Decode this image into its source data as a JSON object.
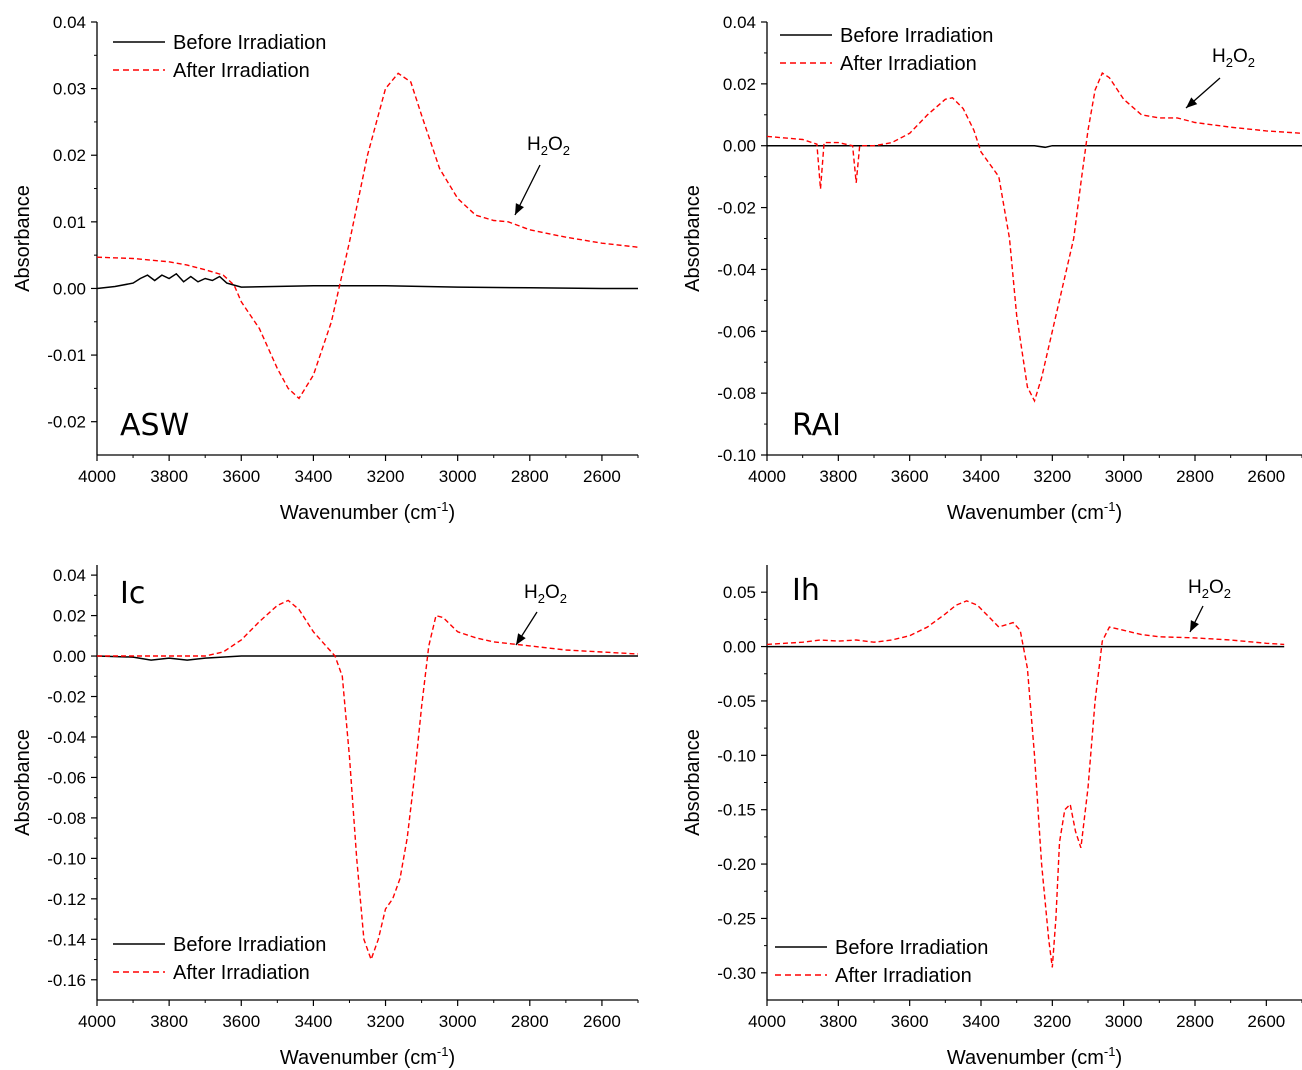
{
  "chart_data": [
    {
      "type": "line",
      "panel_label": "ASW",
      "xlabel": "Wavenumber (cm",
      "xlabel_sup": "-1",
      "xlabel_end": ")",
      "ylabel": "Absorbance",
      "xlim": [
        4000,
        2500
      ],
      "ylim": [
        -0.025,
        0.04
      ],
      "x_ticks": [
        4000,
        3800,
        3600,
        3400,
        3200,
        3000,
        2800,
        2600
      ],
      "x_tick_labels": [
        "4000",
        "3800",
        "3600",
        "3400",
        "3200",
        "3000",
        "2800",
        "2600"
      ],
      "y_ticks": [
        -0.02,
        -0.01,
        0.0,
        0.01,
        0.02,
        0.03,
        0.04
      ],
      "y_tick_labels": [
        "-0.02",
        "-0.01",
        "0.00",
        "0.01",
        "0.02",
        "0.03",
        "0.04"
      ],
      "legend_position": "top-left",
      "grid": false,
      "series": [
        {
          "name": "Before Irradiation",
          "color": "#000000",
          "style": "solid",
          "x": [
            4000,
            3950,
            3900,
            3880,
            3860,
            3840,
            3820,
            3800,
            3780,
            3760,
            3740,
            3720,
            3700,
            3680,
            3660,
            3640,
            3620,
            3600,
            3400,
            3200,
            3000,
            2800,
            2600,
            2500
          ],
          "y": [
            0.0,
            0.0003,
            0.0008,
            0.0015,
            0.002,
            0.0012,
            0.002,
            0.0015,
            0.0022,
            0.001,
            0.0018,
            0.001,
            0.0015,
            0.0012,
            0.0018,
            0.0008,
            0.0005,
            0.0002,
            0.0004,
            0.0004,
            0.0002,
            0.0001,
            0.0,
            0.0
          ]
        },
        {
          "name": "After Irradiation",
          "color": "#ff0000",
          "style": "dashed",
          "x": [
            4000,
            3900,
            3800,
            3750,
            3700,
            3650,
            3620,
            3600,
            3550,
            3500,
            3470,
            3440,
            3400,
            3350,
            3300,
            3250,
            3200,
            3165,
            3130,
            3100,
            3050,
            3000,
            2950,
            2900,
            2860,
            2800,
            2700,
            2600,
            2500
          ],
          "y": [
            0.0047,
            0.0045,
            0.004,
            0.0035,
            0.0028,
            0.002,
            0.0005,
            -0.002,
            -0.006,
            -0.012,
            -0.015,
            -0.0165,
            -0.013,
            -0.005,
            0.007,
            0.02,
            0.03,
            0.0323,
            0.031,
            0.026,
            0.018,
            0.0135,
            0.011,
            0.0102,
            0.01,
            0.0088,
            0.0077,
            0.0068,
            0.0062
          ]
        }
      ],
      "annotation": {
        "label": "H2O2",
        "x": 2860,
        "y": 0.01
      }
    },
    {
      "type": "line",
      "panel_label": "RAI",
      "xlabel": "Wavenumber (cm",
      "xlabel_sup": "-1",
      "xlabel_end": ")",
      "ylabel": "Absorbance",
      "xlim": [
        4000,
        2500
      ],
      "ylim": [
        -0.1,
        0.04
      ],
      "x_ticks": [
        4000,
        3800,
        3600,
        3400,
        3200,
        3000,
        2800,
        2600
      ],
      "x_tick_labels": [
        "4000",
        "3800",
        "3600",
        "3400",
        "3200",
        "3000",
        "2800",
        "2600"
      ],
      "y_ticks": [
        -0.1,
        -0.08,
        -0.06,
        -0.04,
        -0.02,
        0.0,
        0.02,
        0.04
      ],
      "y_tick_labels": [
        "-0.10",
        "-0.08",
        "-0.06",
        "-0.04",
        "-0.02",
        "0.00",
        "0.02",
        "0.04"
      ],
      "legend_position": "top-left",
      "grid": false,
      "series": [
        {
          "name": "Before Irradiation",
          "color": "#000000",
          "style": "solid",
          "x": [
            4000,
            3400,
            3250,
            3220,
            3200,
            3000,
            2500
          ],
          "y": [
            0.0,
            0.0,
            0.0,
            -0.0005,
            0.0,
            0.0,
            0.0
          ]
        },
        {
          "name": "After Irradiation",
          "color": "#ff0000",
          "style": "dashed",
          "x": [
            4000,
            3900,
            3860,
            3850,
            3840,
            3800,
            3760,
            3750,
            3740,
            3700,
            3650,
            3600,
            3550,
            3500,
            3480,
            3450,
            3420,
            3400,
            3350,
            3320,
            3300,
            3270,
            3250,
            3230,
            3200,
            3170,
            3140,
            3120,
            3100,
            3080,
            3060,
            3040,
            3000,
            2950,
            2900,
            2850,
            2800,
            2700,
            2600,
            2500
          ],
          "y": [
            0.003,
            0.002,
            0.0005,
            -0.014,
            0.001,
            0.001,
            0.0,
            -0.012,
            0.0,
            0.0,
            0.001,
            0.004,
            0.01,
            0.015,
            0.0155,
            0.012,
            0.005,
            -0.002,
            -0.01,
            -0.03,
            -0.055,
            -0.078,
            -0.0825,
            -0.075,
            -0.06,
            -0.045,
            -0.03,
            -0.012,
            0.005,
            0.018,
            0.0235,
            0.022,
            0.015,
            0.01,
            0.009,
            0.009,
            0.0075,
            0.006,
            0.0048,
            0.004
          ]
        }
      ],
      "annotation": {
        "label": "H2O2",
        "x": 2850,
        "y": 0.009
      }
    },
    {
      "type": "line",
      "panel_label": "Ic",
      "xlabel": "Wavenumber (cm",
      "xlabel_sup": "-1",
      "xlabel_end": ")",
      "ylabel": "Absorbance",
      "xlim": [
        4000,
        2500
      ],
      "ylim": [
        -0.17,
        0.045
      ],
      "x_ticks": [
        4000,
        3800,
        3600,
        3400,
        3200,
        3000,
        2800,
        2600
      ],
      "x_tick_labels": [
        "4000",
        "3800",
        "3600",
        "3400",
        "3200",
        "3000",
        "2800",
        "2600"
      ],
      "y_ticks": [
        -0.16,
        -0.14,
        -0.12,
        -0.1,
        -0.08,
        -0.06,
        -0.04,
        -0.02,
        0.0,
        0.02,
        0.04
      ],
      "y_tick_labels": [
        "-0.16",
        "-0.14",
        "-0.12",
        "-0.10",
        "-0.08",
        "-0.06",
        "-0.04",
        "-0.02",
        "0.00",
        "0.02",
        "0.04"
      ],
      "legend_position": "bottom-left",
      "grid": false,
      "series": [
        {
          "name": "Before Irradiation",
          "color": "#000000",
          "style": "solid",
          "x": [
            4000,
            3900,
            3850,
            3800,
            3750,
            3700,
            3600,
            3200,
            2500
          ],
          "y": [
            0.0,
            -0.0005,
            -0.002,
            -0.001,
            -0.002,
            -0.001,
            0.0,
            0.0,
            0.0
          ]
        },
        {
          "name": "After Irradiation",
          "color": "#ff0000",
          "style": "dashed",
          "x": [
            4000,
            3800,
            3700,
            3650,
            3600,
            3550,
            3500,
            3470,
            3440,
            3400,
            3360,
            3340,
            3320,
            3300,
            3280,
            3260,
            3240,
            3220,
            3200,
            3180,
            3160,
            3140,
            3120,
            3100,
            3080,
            3060,
            3040,
            3000,
            2950,
            2900,
            2850,
            2800,
            2700,
            2600,
            2500
          ],
          "y": [
            0.0,
            0.0,
            0.0,
            0.002,
            0.008,
            0.017,
            0.025,
            0.0275,
            0.023,
            0.012,
            0.004,
            0.0,
            -0.01,
            -0.05,
            -0.1,
            -0.14,
            -0.15,
            -0.14,
            -0.125,
            -0.12,
            -0.11,
            -0.09,
            -0.06,
            -0.025,
            0.005,
            0.02,
            0.019,
            0.012,
            0.009,
            0.007,
            0.006,
            0.005,
            0.003,
            0.002,
            0.001
          ]
        }
      ],
      "annotation": {
        "label": "H2O2",
        "x": 2840,
        "y": 0.006
      }
    },
    {
      "type": "line",
      "panel_label": "Ih",
      "xlabel": "Wavenumber (cm",
      "xlabel_sup": "-1",
      "xlabel_end": ")",
      "ylabel": "Absorbance",
      "xlim": [
        4000,
        2500
      ],
      "ylim": [
        -0.325,
        0.075
      ],
      "x_ticks": [
        4000,
        3800,
        3600,
        3400,
        3200,
        3000,
        2800,
        2600
      ],
      "x_tick_labels": [
        "4000",
        "3800",
        "3600",
        "3400",
        "3200",
        "3000",
        "2800",
        "2600"
      ],
      "y_ticks": [
        -0.3,
        -0.25,
        -0.2,
        -0.15,
        -0.1,
        -0.05,
        0.0,
        0.05
      ],
      "y_tick_labels": [
        "-0.30",
        "-0.25",
        "-0.20",
        "-0.15",
        "-0.10",
        "-0.05",
        "0.00",
        "0.05"
      ],
      "legend_position": "bottom-left",
      "grid": false,
      "series": [
        {
          "name": "Before Irradiation",
          "color": "#000000",
          "style": "solid",
          "x": [
            4000,
            3500,
            3000,
            2550
          ],
          "y": [
            0.0,
            0.0,
            0.0,
            0.0
          ]
        },
        {
          "name": "After Irradiation",
          "color": "#ff0000",
          "style": "dashed",
          "x": [
            4000,
            3900,
            3850,
            3800,
            3750,
            3700,
            3650,
            3600,
            3550,
            3500,
            3470,
            3440,
            3410,
            3380,
            3350,
            3330,
            3310,
            3290,
            3270,
            3250,
            3230,
            3210,
            3200,
            3190,
            3180,
            3165,
            3150,
            3135,
            3120,
            3100,
            3080,
            3060,
            3040,
            3000,
            2950,
            2900,
            2800,
            2700,
            2600,
            2550
          ],
          "y": [
            0.002,
            0.004,
            0.006,
            0.005,
            0.006,
            0.004,
            0.006,
            0.01,
            0.018,
            0.03,
            0.038,
            0.042,
            0.038,
            0.028,
            0.018,
            0.02,
            0.022,
            0.015,
            -0.02,
            -0.1,
            -0.2,
            -0.27,
            -0.295,
            -0.25,
            -0.18,
            -0.15,
            -0.145,
            -0.17,
            -0.185,
            -0.13,
            -0.05,
            0.005,
            0.018,
            0.015,
            0.011,
            0.009,
            0.008,
            0.006,
            0.003,
            0.002
          ]
        }
      ],
      "annotation": {
        "label": "H2O2",
        "x": 2900,
        "y": 0.009
      }
    }
  ]
}
